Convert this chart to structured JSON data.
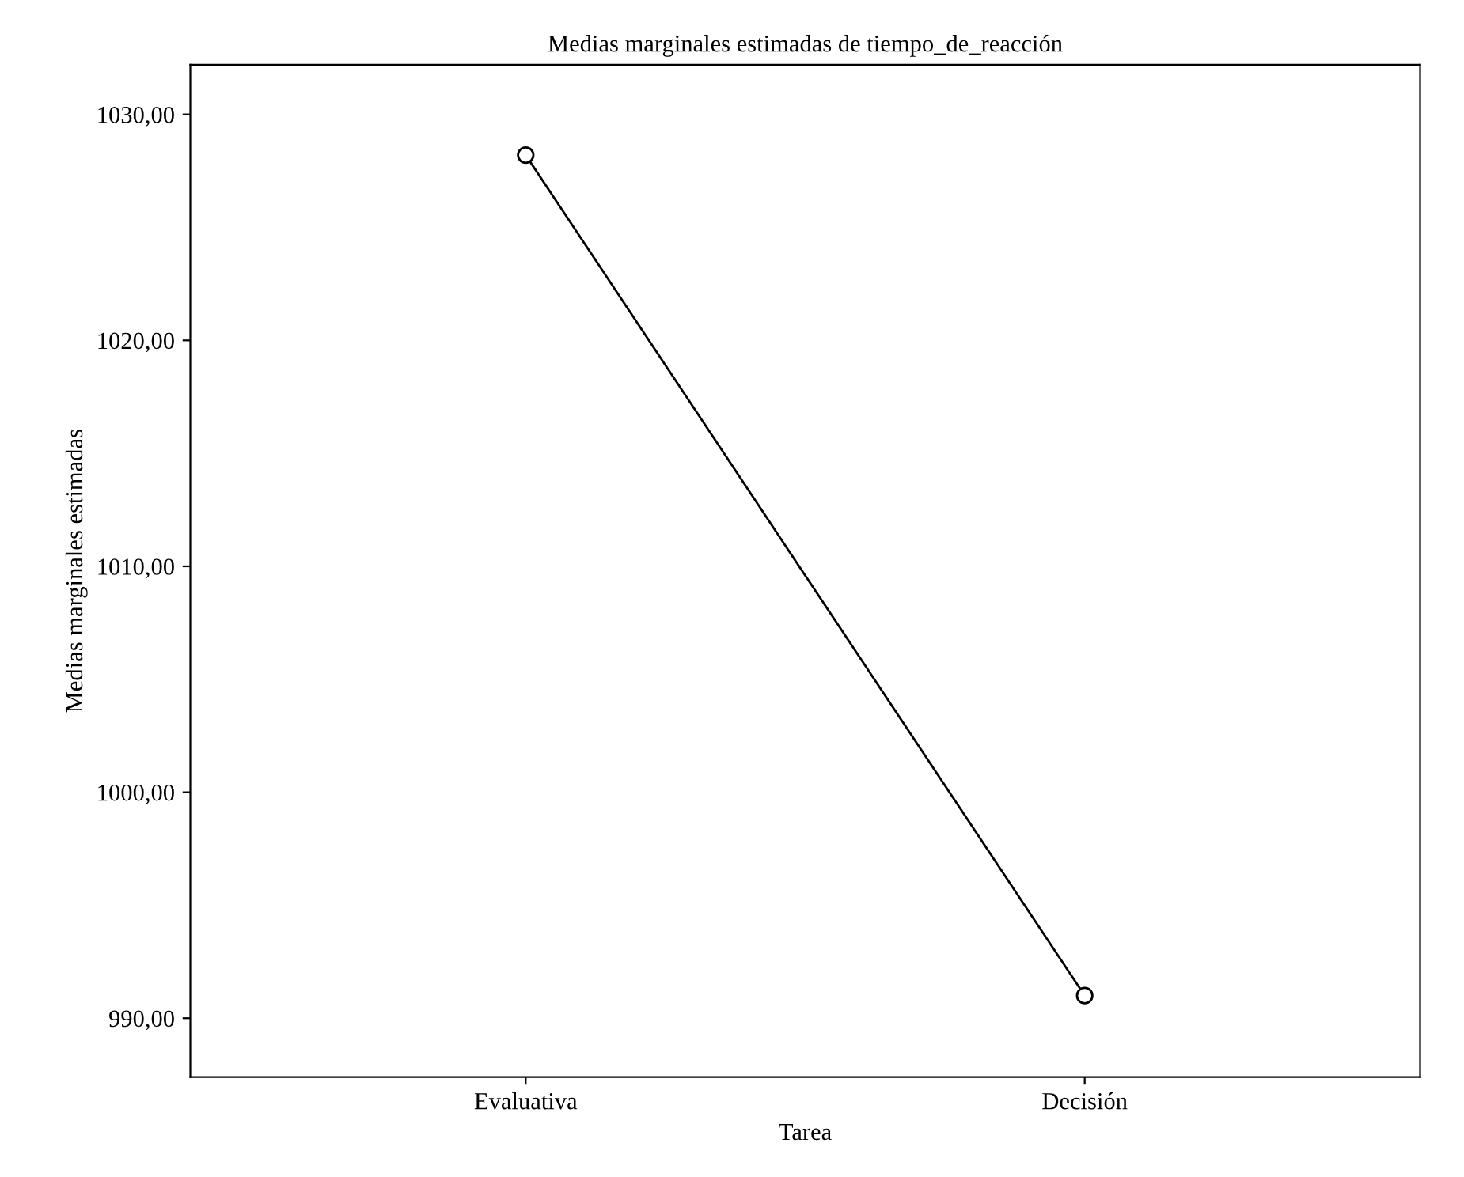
{
  "chart_data": {
    "type": "line",
    "title": "Medias marginales estimadas de tiempo_de_reacción",
    "xlabel": "Tarea",
    "ylabel": "Medias marginales estimadas",
    "categories": [
      "Evaluativa",
      "Decisión"
    ],
    "series": [
      {
        "color": "#000000",
        "values": [
          1028.2,
          991.0
        ]
      }
    ],
    "ylim": [
      987.4,
      1032.2
    ],
    "yticks": [
      {
        "value": 990,
        "label": "990,00"
      },
      {
        "value": 1000,
        "label": "1000,00"
      },
      {
        "value": 1010,
        "label": "1010,00"
      },
      {
        "value": 1020,
        "label": "1020,00"
      },
      {
        "value": 1030,
        "label": "1030,00"
      }
    ],
    "marker": "circle",
    "grid": false
  }
}
